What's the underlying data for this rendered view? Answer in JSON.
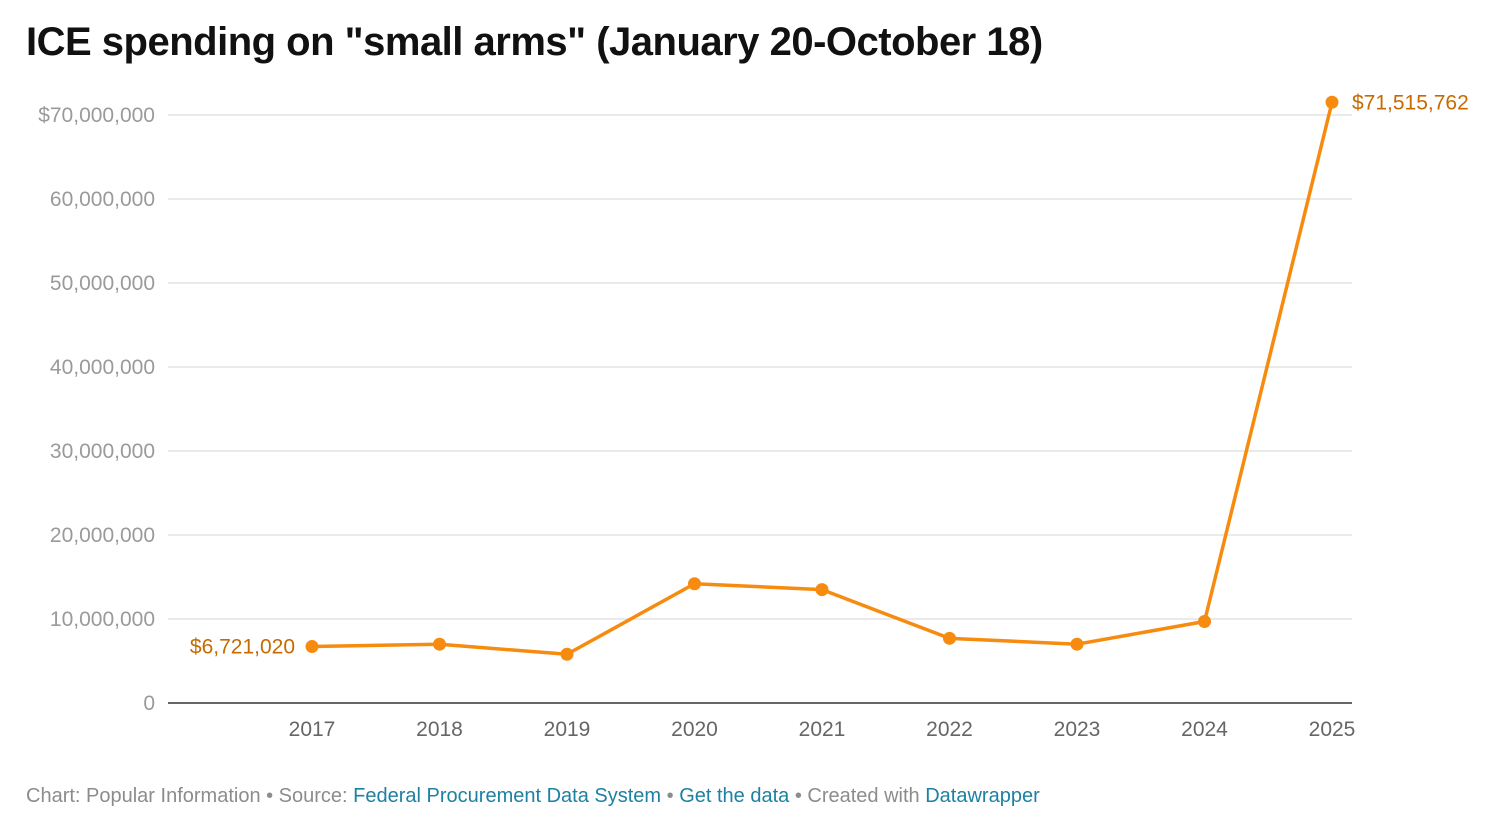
{
  "title": "ICE spending on \"small arms\" (January 20-October 18)",
  "footer": {
    "chart_prefix": "Chart: Popular Information",
    "sep1": " • Source: ",
    "source_link": "Federal Procurement Data System",
    "sep2": " • ",
    "get_data_link": "Get the data",
    "sep3": " • Created with ",
    "datawrapper_link": "Datawrapper"
  },
  "colors": {
    "line": "#f68b0f",
    "label": "#c76a00",
    "grid": "#e3e3e3",
    "axis": "#333333"
  },
  "chart_data": {
    "type": "line",
    "title": "ICE spending on \"small arms\" (January 20-October 18)",
    "xlabel": "",
    "ylabel": "",
    "x": [
      "2017",
      "2018",
      "2019",
      "2020",
      "2021",
      "2022",
      "2023",
      "2024",
      "2025"
    ],
    "series": [
      {
        "values": [
          6721020,
          7000000,
          5800000,
          14200000,
          13500000,
          7700000,
          7000000,
          9700000,
          71515762
        ]
      }
    ],
    "ylim": [
      0,
      70000000
    ],
    "yticks": [
      0,
      10000000,
      20000000,
      30000000,
      40000000,
      50000000,
      60000000,
      70000000
    ],
    "ytick_labels": [
      "0",
      "10,000,000",
      "20,000,000",
      "30,000,000",
      "40,000,000",
      "50,000,000",
      "60,000,000",
      "$70,000,000"
    ],
    "annotations": [
      {
        "index": 0,
        "text": "$6,721,020"
      },
      {
        "index": 8,
        "text": "$71,515,762"
      }
    ],
    "grid": true,
    "legend": "none"
  }
}
